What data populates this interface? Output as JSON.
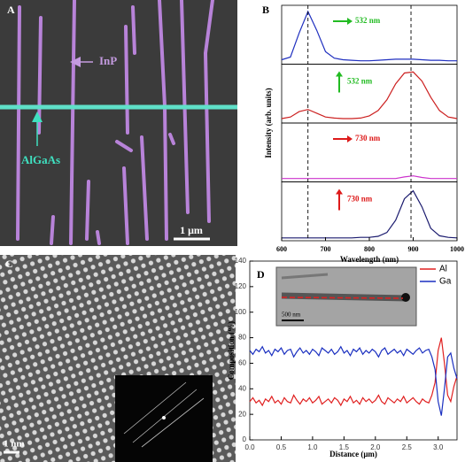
{
  "panels": {
    "a": {
      "label": "A",
      "annotations": [
        "InP",
        "AlGaAs"
      ],
      "scale_bar": "1 μm"
    },
    "c": {
      "label": "C",
      "scale_bar": "1 nm"
    },
    "d_inset": {
      "scale_bar": "500 nm"
    }
  },
  "chart_data": [
    {
      "type": "line",
      "label": "B",
      "xlabel": "Wavelength (nm)",
      "ylabel": "Intensity (arb. units)",
      "xlim": [
        600,
        1000
      ],
      "xticks": [
        600,
        700,
        800,
        900,
        1000
      ],
      "vlines": [
        660,
        895
      ],
      "x": [
        600,
        620,
        640,
        660,
        680,
        700,
        720,
        740,
        760,
        780,
        800,
        820,
        840,
        860,
        880,
        900,
        920,
        940,
        960,
        980,
        1000
      ],
      "panels": [
        {
          "ylim": [
            0,
            100
          ],
          "annotation": "532 nm",
          "annotation_color": "#22bb22",
          "arrow": "right",
          "series": [
            {
              "color": "#1f2fbf",
              "values": [
                5,
                10,
                55,
                95,
                60,
                20,
                8,
                5,
                4,
                3,
                3,
                4,
                5,
                6,
                6,
                6,
                5,
                4,
                4,
                3,
                3
              ]
            }
          ]
        },
        {
          "ylim": [
            0,
            100
          ],
          "annotation": "532 nm",
          "annotation_color": "#22bb22",
          "arrow": "up",
          "series": [
            {
              "color": "#cc2020",
              "values": [
                5,
                8,
                18,
                22,
                15,
                8,
                6,
                5,
                5,
                6,
                10,
                20,
                40,
                70,
                90,
                92,
                75,
                45,
                20,
                8,
                5
              ]
            }
          ]
        },
        {
          "ylim": [
            0,
            100
          ],
          "annotation": "730 nm",
          "annotation_color": "#dd1a1a",
          "arrow": "right",
          "series": [
            {
              "color": "#cc33cc",
              "values": [
                3,
                3,
                3,
                3,
                3,
                3,
                3,
                3,
                3,
                3,
                3,
                3,
                3,
                3,
                6,
                8,
                5,
                3,
                3,
                3,
                3
              ]
            }
          ]
        },
        {
          "ylim": [
            0,
            100
          ],
          "annotation": "730 nm",
          "annotation_color": "#dd1a1a",
          "arrow": "up",
          "series": [
            {
              "color": "#1a1a6e",
              "values": [
                2,
                2,
                2,
                2,
                2,
                2,
                2,
                2,
                2,
                3,
                3,
                5,
                12,
                35,
                75,
                90,
                60,
                20,
                6,
                3,
                2
              ]
            }
          ]
        }
      ]
    },
    {
      "type": "line",
      "label": "D",
      "xlabel": "Distance (μm)",
      "ylabel": "Composition (%)",
      "xlim": [
        0,
        3.3
      ],
      "ylim": [
        0,
        140
      ],
      "xticks": [
        {
          "value": 0,
          "label": "0.0"
        },
        0.5,
        {
          "value": 1,
          "label": "1.0"
        },
        1.5,
        {
          "value": 2,
          "label": "2.0"
        },
        2.5,
        {
          "value": 3,
          "label": "3.0"
        }
      ],
      "yticks": [
        0,
        20,
        40,
        60,
        80,
        100,
        120,
        140
      ],
      "legend": "upper right",
      "x": [
        0,
        0.05,
        0.1,
        0.15,
        0.2,
        0.25,
        0.3,
        0.35,
        0.4,
        0.45,
        0.5,
        0.55,
        0.6,
        0.65,
        0.7,
        0.75,
        0.8,
        0.85,
        0.9,
        0.95,
        1,
        1.05,
        1.1,
        1.15,
        1.2,
        1.25,
        1.3,
        1.35,
        1.4,
        1.45,
        1.5,
        1.55,
        1.6,
        1.65,
        1.7,
        1.75,
        1.8,
        1.85,
        1.9,
        1.95,
        2,
        2.05,
        2.1,
        2.15,
        2.2,
        2.25,
        2.3,
        2.35,
        2.4,
        2.45,
        2.5,
        2.55,
        2.6,
        2.65,
        2.7,
        2.75,
        2.8,
        2.85,
        2.9,
        2.95,
        3,
        3.05,
        3.1,
        3.15,
        3.2,
        3.25,
        3.3
      ],
      "series": [
        {
          "name": "Al",
          "color": "#e02020",
          "values": [
            30,
            33,
            29,
            31,
            27,
            32,
            30,
            34,
            29,
            31,
            28,
            33,
            30,
            29,
            35,
            31,
            28,
            32,
            30,
            33,
            29,
            31,
            34,
            28,
            30,
            32,
            29,
            33,
            31,
            27,
            32,
            30,
            34,
            29,
            31,
            28,
            33,
            30,
            32,
            29,
            31,
            35,
            30,
            28,
            33,
            31,
            29,
            32,
            30,
            34,
            29,
            31,
            33,
            30,
            28,
            32,
            30,
            29,
            35,
            45,
            70,
            80,
            60,
            35,
            30,
            42,
            50
          ]
        },
        {
          "name": "Ga",
          "color": "#1a2fc0",
          "values": [
            70,
            67,
            71,
            69,
            73,
            68,
            70,
            66,
            71,
            69,
            72,
            67,
            70,
            71,
            65,
            69,
            72,
            68,
            70,
            67,
            71,
            69,
            66,
            72,
            70,
            68,
            71,
            67,
            69,
            73,
            68,
            70,
            66,
            71,
            69,
            72,
            67,
            70,
            68,
            71,
            69,
            65,
            70,
            72,
            67,
            69,
            71,
            68,
            70,
            66,
            71,
            69,
            67,
            70,
            72,
            68,
            70,
            71,
            65,
            55,
            30,
            19,
            40,
            65,
            68,
            56,
            48
          ]
        }
      ]
    }
  ]
}
